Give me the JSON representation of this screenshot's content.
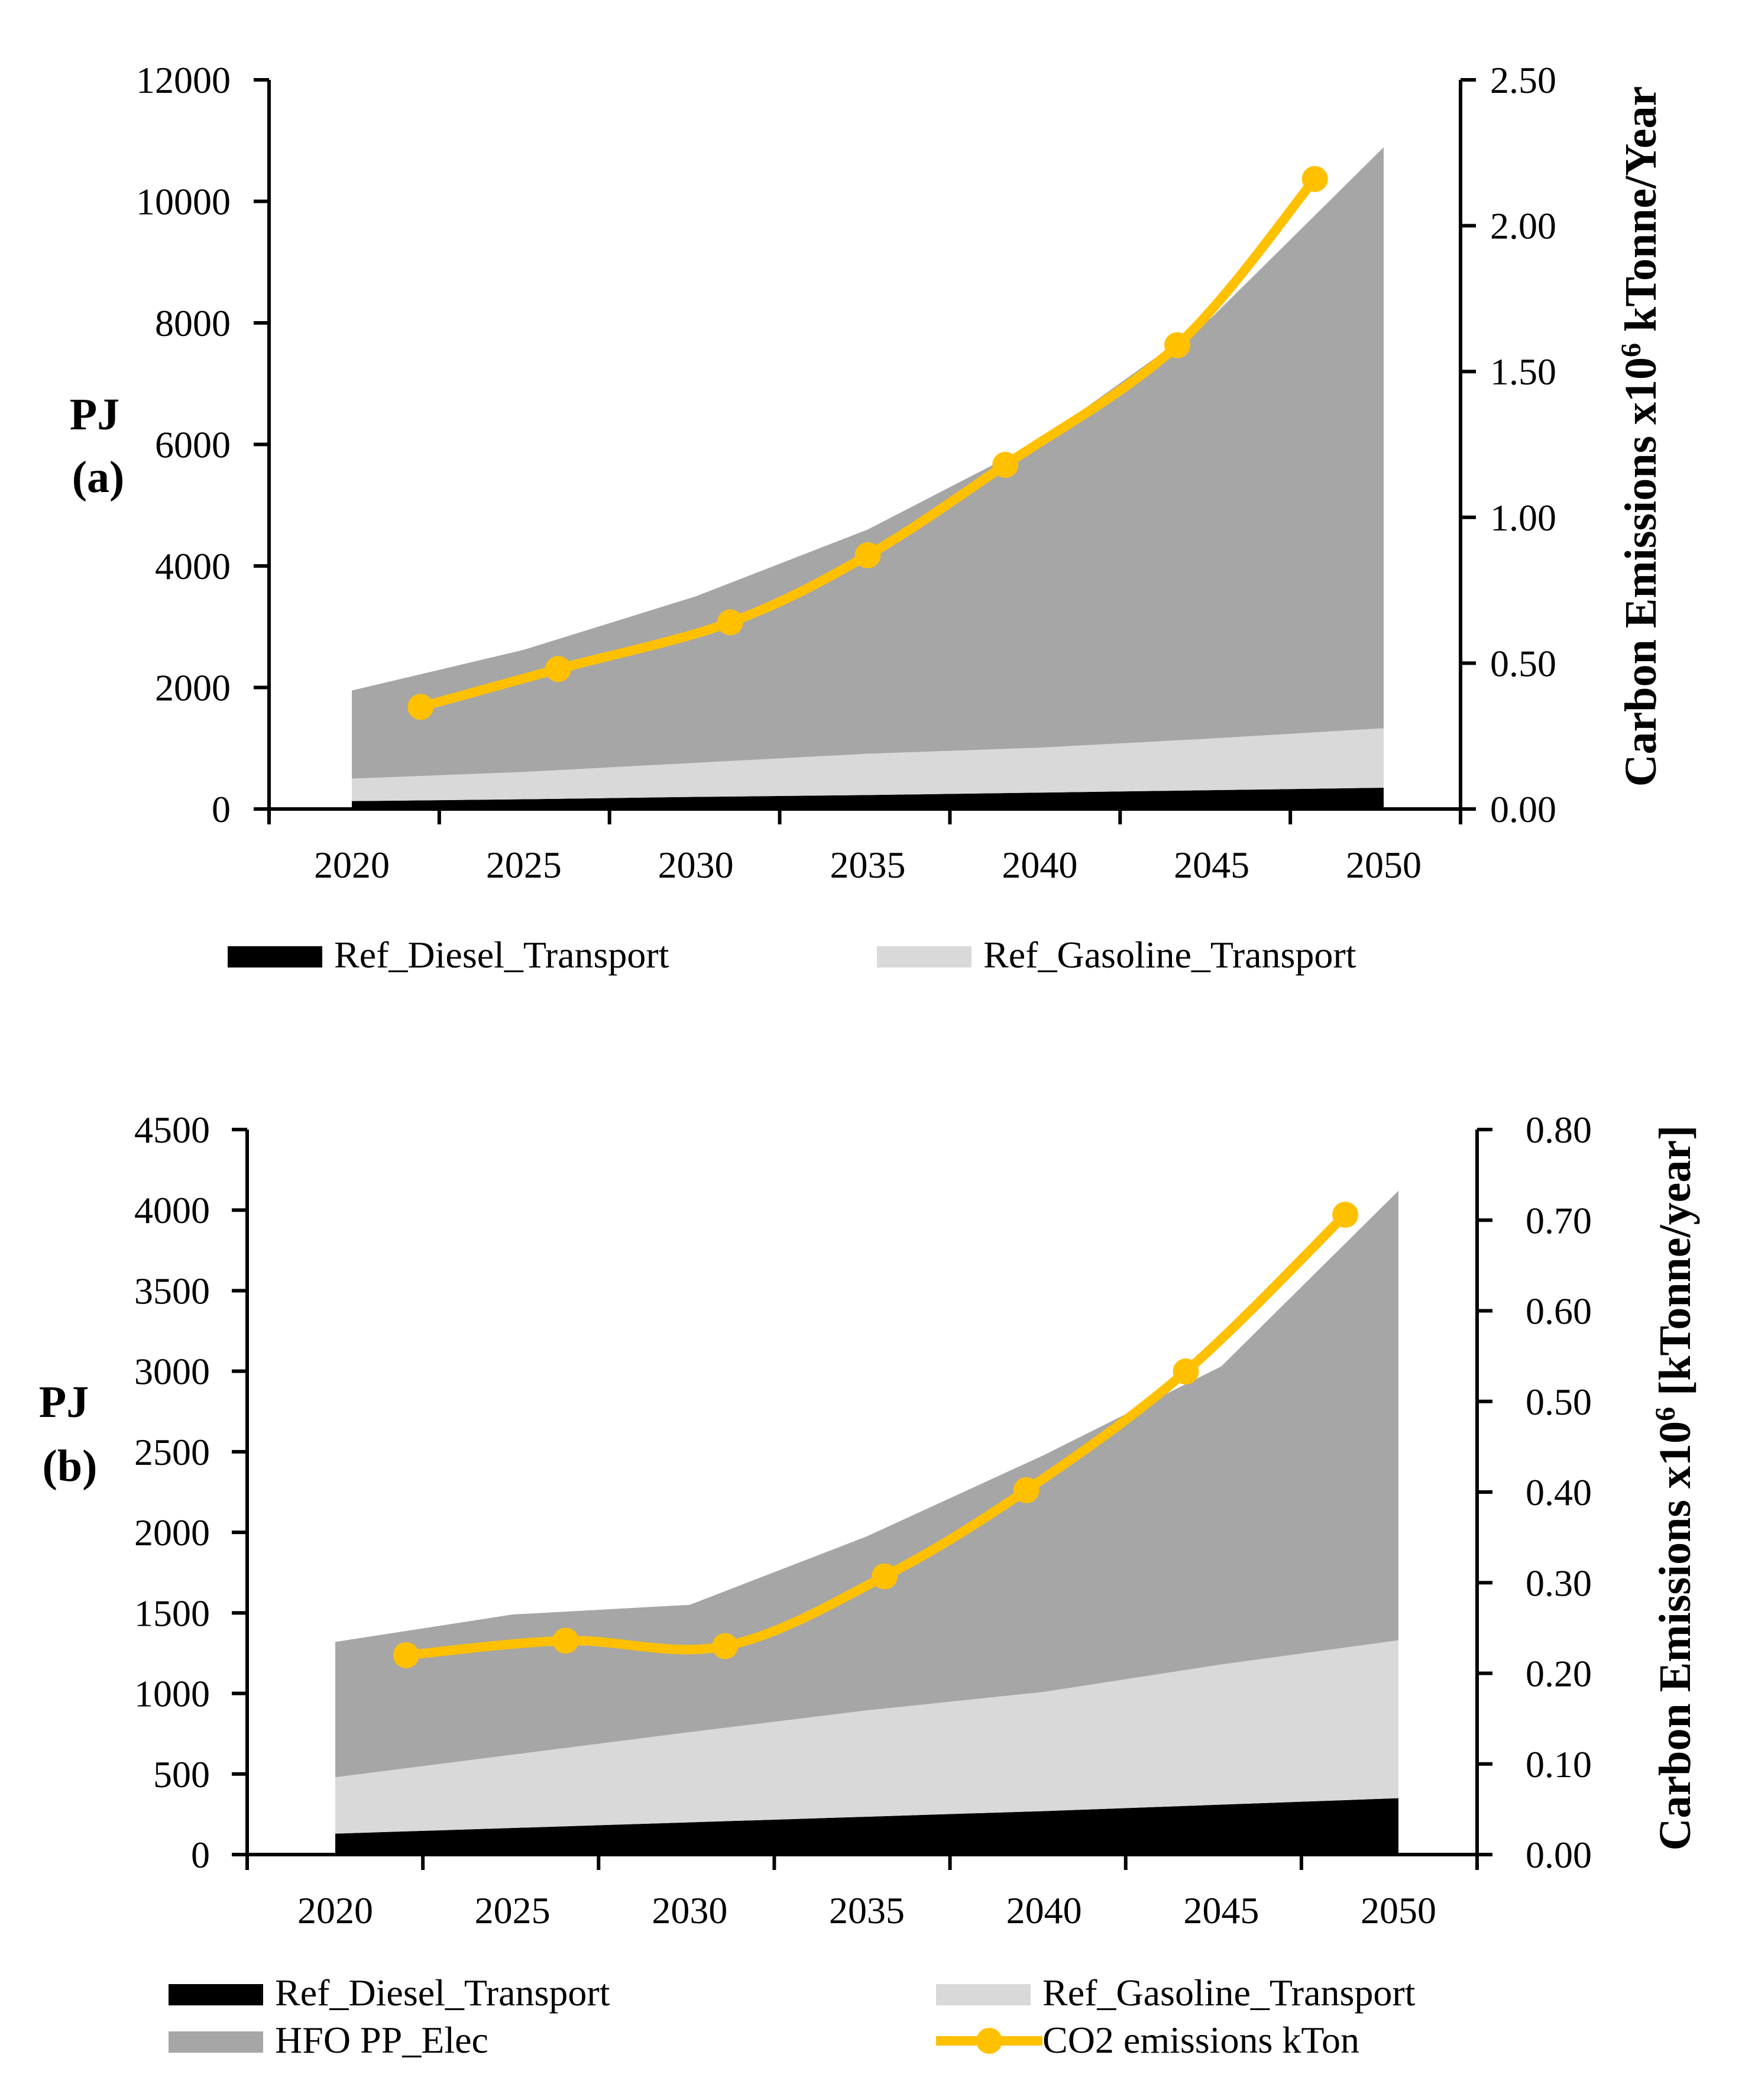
{
  "colors": {
    "diesel": "#000000",
    "gasoline": "#d9d9d9",
    "hfo": "#a6a6a6",
    "co2": "#ffc000"
  },
  "chart_data": [
    {
      "type": "area",
      "panel_label": "(a)",
      "ylabel": "PJ",
      "y2label": "Carbon Emissions x10⁶ kTonne/Year",
      "y2label_base": "Carbon Emissions x10",
      "y2label_sup": "6",
      "y2label_rest": " kTonne/Year",
      "x_ticks": [
        "2020",
        "2025",
        "2030",
        "2035",
        "2040",
        "2045",
        "2050"
      ],
      "ylim": [
        0,
        12000
      ],
      "y_ticks": [
        "0",
        "2000",
        "4000",
        "6000",
        "8000",
        "10000",
        "12000"
      ],
      "y2lim": [
        0,
        2.5
      ],
      "y2_ticks": [
        "0.00",
        "0.50",
        "1.00",
        "1.50",
        "2.00",
        "2.50"
      ],
      "stacked": true,
      "x": [
        2020,
        2025,
        2030,
        2035,
        2040,
        2045,
        2050
      ],
      "series": [
        {
          "name": "Ref_Diesel_Transport",
          "key": "diesel",
          "values": [
            130,
            160,
            200,
            230,
            270,
            310,
            350
          ]
        },
        {
          "name": "Ref_Gasoline_Transport",
          "key": "gasoline",
          "values": [
            370,
            450,
            560,
            680,
            740,
            850,
            980
          ]
        },
        {
          "name": "HFO PP_Elec",
          "key": "hfo",
          "values": [
            1450,
            2010,
            2740,
            3690,
            5050,
            6930,
            9560
          ]
        }
      ],
      "line": {
        "name": "CO2 emissions kTon",
        "x": [
          2022,
          2026,
          2031,
          2035,
          2039,
          2044,
          2048
        ],
        "values": [
          0.35,
          0.48,
          0.64,
          0.87,
          1.18,
          1.59,
          2.16
        ]
      },
      "legend": [
        "Ref_Diesel_Transport",
        "Ref_Gasoline_Transport"
      ]
    },
    {
      "type": "area",
      "panel_label": "(b)",
      "ylabel": "PJ",
      "y2label": "Carbon Emissions x10⁶ [kTonne/year]",
      "y2label_base": "Carbon Emissions x10",
      "y2label_sup": "6",
      "y2label_rest": " [kTonne/year]",
      "x_ticks": [
        "2020",
        "2025",
        "2030",
        "2035",
        "2040",
        "2045",
        "2050"
      ],
      "ylim": [
        0,
        4500
      ],
      "y_ticks": [
        "0",
        "500",
        "1000",
        "1500",
        "2000",
        "2500",
        "3000",
        "3500",
        "4000",
        "4500"
      ],
      "y2lim": [
        0,
        0.8
      ],
      "y2_ticks": [
        "0.00",
        "0.10",
        "0.20",
        "0.30",
        "0.40",
        "0.50",
        "0.60",
        "0.70",
        "0.80"
      ],
      "stacked": true,
      "x": [
        2020,
        2025,
        2030,
        2035,
        2040,
        2045,
        2050
      ],
      "series": [
        {
          "name": "Ref_Diesel_Transport",
          "key": "diesel",
          "values": [
            130,
            165,
            200,
            235,
            270,
            310,
            350
          ]
        },
        {
          "name": "Ref_Gasoline_Transport",
          "key": "gasoline",
          "values": [
            350,
            455,
            560,
            660,
            740,
            870,
            980
          ]
        },
        {
          "name": "HFO PP_Elec",
          "key": "hfo",
          "values": [
            840,
            870,
            790,
            1080,
            1470,
            1850,
            2790
          ]
        }
      ],
      "line": {
        "name": "CO2 emissions kTon",
        "x": [
          2022,
          2026.5,
          2031,
          2035.5,
          2039.5,
          2044,
          2048.5
        ],
        "values": [
          0.22,
          0.236,
          0.23,
          0.307,
          0.402,
          0.533,
          0.706
        ]
      },
      "legend": [
        "Ref_Diesel_Transport",
        "Ref_Gasoline_Transport",
        "HFO PP_Elec",
        "CO2 emissions  kTon"
      ]
    }
  ]
}
